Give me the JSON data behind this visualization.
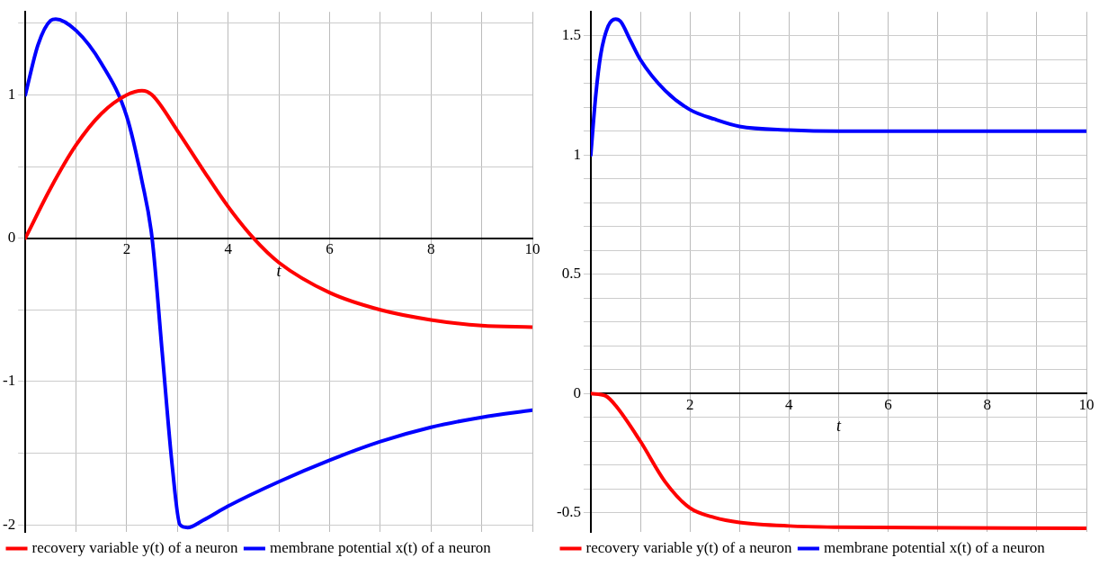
{
  "chart_data": [
    {
      "type": "line",
      "xlabel": "t",
      "xlim": [
        0,
        10
      ],
      "ylim": [
        -2.05,
        1.58
      ],
      "xticks": [
        {
          "value": 0,
          "label": null
        },
        {
          "value": 1,
          "label": null
        },
        2,
        {
          "value": 3,
          "label": null
        },
        4,
        {
          "value": 5,
          "label": null
        },
        6,
        {
          "value": 7,
          "label": null
        },
        8,
        {
          "value": 9,
          "label": null
        },
        10
      ],
      "yticks": [
        -2,
        {
          "value": -1.5,
          "label": null
        },
        -1,
        {
          "value": -0.5,
          "label": null
        },
        0,
        {
          "value": 0.5,
          "label": null
        },
        1,
        {
          "value": 1.5,
          "label": null
        }
      ],
      "grid": true,
      "legend": "bottom",
      "marker": "none",
      "line_style": "solid",
      "series": [
        {
          "name": "recovery variable y(t) of a neuron",
          "color": "#ff0000",
          "x": [
            0,
            0.5,
            1,
            1.5,
            2,
            2.3,
            2.5,
            3,
            3.5,
            4,
            4.5,
            5,
            6,
            7,
            8,
            9,
            10
          ],
          "values": [
            0,
            0.35,
            0.65,
            0.87,
            1.0,
            1.03,
            1.0,
            0.75,
            0.48,
            0.22,
            0.0,
            -0.17,
            -0.38,
            -0.5,
            -0.57,
            -0.61,
            -0.62
          ]
        },
        {
          "name": "membrane potential x(t) of a neuron",
          "color": "#0000ff",
          "x": [
            0,
            0.25,
            0.5,
            0.6,
            1,
            1.5,
            2,
            2.3,
            2.5,
            2.7,
            2.9,
            3.05,
            3.2,
            3.5,
            4,
            5,
            6,
            7,
            8,
            9,
            10
          ],
          "values": [
            1,
            1.35,
            1.52,
            1.53,
            1.45,
            1.22,
            0.85,
            0.4,
            0,
            -0.8,
            -1.6,
            -2.0,
            -2.02,
            -1.97,
            -1.87,
            -1.7,
            -1.55,
            -1.42,
            -1.32,
            -1.25,
            -1.2
          ]
        }
      ]
    },
    {
      "type": "line",
      "xlabel": "t",
      "xlim": [
        0,
        10
      ],
      "ylim": [
        -0.58,
        1.6
      ],
      "xticks": [
        {
          "value": 0,
          "label": null
        },
        {
          "value": 1,
          "label": null
        },
        2,
        {
          "value": 3,
          "label": null
        },
        4,
        {
          "value": 5,
          "label": null
        },
        6,
        {
          "value": 7,
          "label": null
        },
        8,
        {
          "value": 9,
          "label": null
        },
        10
      ],
      "yticks": [
        -0.5,
        {
          "value": -0.4,
          "label": null
        },
        {
          "value": -0.3,
          "label": null
        },
        {
          "value": -0.2,
          "label": null
        },
        {
          "value": -0.1,
          "label": null
        },
        0,
        {
          "value": 0.1,
          "label": null
        },
        {
          "value": 0.2,
          "label": null
        },
        {
          "value": 0.3,
          "label": null
        },
        {
          "value": 0.4,
          "label": null
        },
        0.5,
        {
          "value": 0.6,
          "label": null
        },
        {
          "value": 0.7,
          "label": null
        },
        {
          "value": 0.8,
          "label": null
        },
        {
          "value": 0.9,
          "label": null
        },
        1,
        {
          "value": 1.1,
          "label": null
        },
        {
          "value": 1.2,
          "label": null
        },
        {
          "value": 1.3,
          "label": null
        },
        {
          "value": 1.4,
          "label": null
        },
        1.5
      ],
      "grid": true,
      "legend": "bottom",
      "marker": "none",
      "line_style": "solid",
      "series": [
        {
          "name": "recovery variable y(t) of a neuron",
          "color": "#ff0000",
          "x": [
            0,
            0.3,
            0.5,
            1,
            1.5,
            2,
            2.5,
            3,
            4,
            5,
            10
          ],
          "values": [
            0,
            -0.01,
            -0.05,
            -0.2,
            -0.37,
            -0.48,
            -0.52,
            -0.54,
            -0.555,
            -0.56,
            -0.565
          ]
        },
        {
          "name": "membrane potential x(t) of a neuron",
          "color": "#0000ff",
          "x": [
            0,
            0.1,
            0.2,
            0.35,
            0.5,
            0.6,
            0.8,
            1,
            1.5,
            2,
            2.5,
            3,
            4,
            5,
            10
          ],
          "values": [
            1,
            1.25,
            1.42,
            1.54,
            1.57,
            1.56,
            1.48,
            1.4,
            1.27,
            1.19,
            1.15,
            1.12,
            1.105,
            1.1,
            1.1
          ]
        }
      ]
    }
  ]
}
